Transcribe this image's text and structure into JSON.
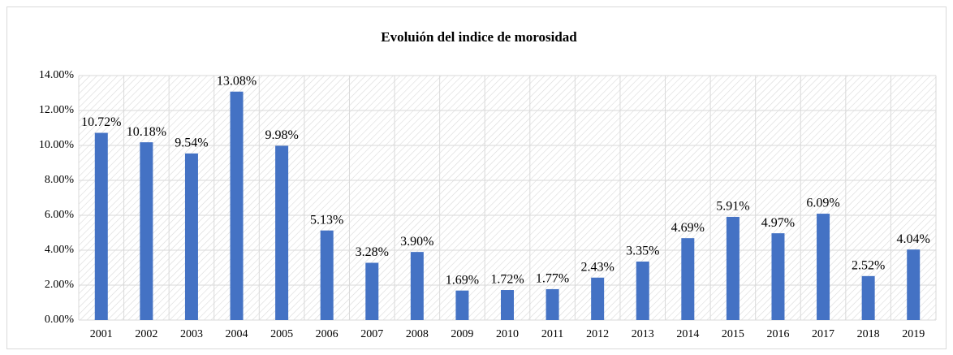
{
  "chart_data": {
    "type": "bar",
    "title": "Evoluión del indice de morosidad",
    "categories": [
      "2001",
      "2002",
      "2003",
      "2004",
      "2005",
      "2006",
      "2007",
      "2008",
      "2009",
      "2010",
      "2011",
      "2012",
      "2013",
      "2014",
      "2015",
      "2016",
      "2017",
      "2018",
      "2019"
    ],
    "values": [
      10.72,
      10.18,
      9.54,
      13.08,
      9.98,
      5.13,
      3.28,
      3.9,
      1.69,
      1.72,
      1.77,
      2.43,
      3.35,
      4.69,
      5.91,
      4.97,
      6.09,
      2.52,
      4.04
    ],
    "value_labels": [
      "10.72%",
      "10.18%",
      "9.54%",
      "13.08%",
      "9.98%",
      "5.13%",
      "3.28%",
      "3.90%",
      "1.69%",
      "1.72%",
      "1.77%",
      "2.43%",
      "3.35%",
      "4.69%",
      "5.91%",
      "4.97%",
      "6.09%",
      "2.52%",
      "4.04%"
    ],
    "color": "#4472c4",
    "ylim": [
      0,
      14
    ],
    "yticks": [
      {
        "value": 0,
        "label": "0.00%"
      },
      {
        "value": 2,
        "label": "2.00%"
      },
      {
        "value": 4,
        "label": "4.00%"
      },
      {
        "value": 6,
        "label": "6.00%"
      },
      {
        "value": 8,
        "label": "8.00%"
      },
      {
        "value": 10,
        "label": "10.00%"
      },
      {
        "value": 12,
        "label": "12.00%"
      },
      {
        "value": 14,
        "label": "14.00%"
      }
    ],
    "grid": true
  }
}
